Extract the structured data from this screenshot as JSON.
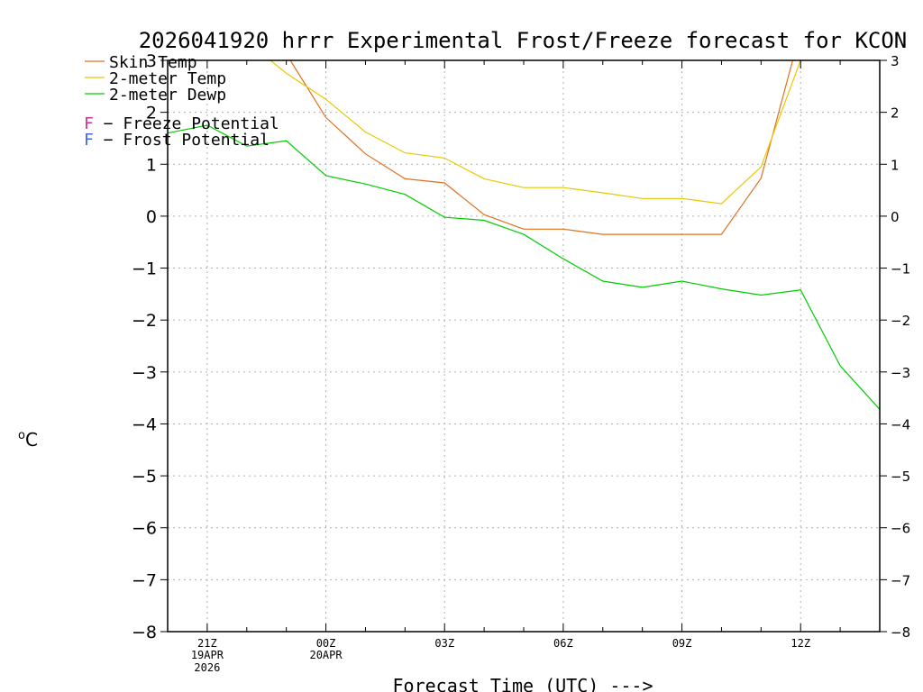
{
  "chart_data": {
    "type": "line",
    "title": "2026041920 hrrr Experimental Frost/Freeze forecast for KCON",
    "xlabel": "Forecast Time (UTC) --->",
    "ylabel_unit": "C",
    "ylabel_degree": "o",
    "ylim": [
      -8,
      3
    ],
    "y_ticks": [
      3,
      2,
      1,
      0,
      -1,
      -2,
      -3,
      -4,
      -5,
      -6,
      -7,
      -8
    ],
    "y_tick_labels": [
      "3",
      "2",
      "1",
      "0",
      "−1",
      "−2",
      "−3",
      "−4",
      "−5",
      "−6",
      "−7",
      "−8"
    ],
    "xlim": [
      20,
      38
    ],
    "x_ticks": [
      {
        "hour": 21,
        "label": "21Z",
        "sub": "19APR",
        "sub2": "2026"
      },
      {
        "hour": 24,
        "label": "00Z",
        "sub": "20APR",
        "sub2": ""
      },
      {
        "hour": 27,
        "label": "03Z",
        "sub": "",
        "sub2": ""
      },
      {
        "hour": 30,
        "label": "06Z",
        "sub": "",
        "sub2": ""
      },
      {
        "hour": 33,
        "label": "09Z",
        "sub": "",
        "sub2": ""
      },
      {
        "hour": 36,
        "label": "12Z",
        "sub": "",
        "sub2": ""
      }
    ],
    "series": [
      {
        "name": "Skin Temp",
        "color": "#e07020",
        "x": [
          23.1,
          24,
          25,
          26,
          27,
          28,
          29,
          30,
          31,
          32,
          33,
          34,
          35,
          35.8
        ],
        "values": [
          3.0,
          1.9,
          1.2,
          0.72,
          0.64,
          0.03,
          -0.25,
          -0.25,
          -0.35,
          -0.35,
          -0.35,
          -0.35,
          0.73,
          3.0
        ]
      },
      {
        "name": "2-meter Temp",
        "color": "#e8c800",
        "x": [
          22.6,
          23,
          24,
          25,
          26,
          27,
          28,
          29,
          30,
          31,
          32,
          33,
          34,
          35,
          36
        ],
        "values": [
          3.0,
          2.75,
          2.25,
          1.62,
          1.22,
          1.12,
          0.72,
          0.55,
          0.55,
          0.45,
          0.34,
          0.34,
          0.24,
          0.95,
          3.0
        ]
      },
      {
        "name": "2-meter Dewp",
        "color": "#00cc00",
        "x": [
          20,
          21,
          22,
          23,
          24,
          25,
          26,
          27,
          28,
          29,
          30,
          31,
          32,
          33,
          34,
          35,
          36,
          37,
          38
        ],
        "values": [
          1.6,
          1.75,
          1.35,
          1.45,
          0.78,
          0.62,
          0.42,
          -0.02,
          -0.08,
          -0.35,
          -0.82,
          -1.25,
          -1.37,
          -1.25,
          -1.4,
          -1.52,
          -1.42,
          -2.88,
          -3.72
        ]
      }
    ],
    "legend": [
      {
        "marker": "",
        "label": "Skin Temp",
        "color": "#e07020"
      },
      {
        "marker": "",
        "label": "2-meter Temp",
        "color": "#e8c800"
      },
      {
        "marker": "",
        "label": "2-meter Dewp",
        "color": "#00cc00"
      },
      {
        "marker": "F",
        "label": " − Freeze Potential",
        "color": "#cc3399"
      },
      {
        "marker": "F",
        "label": " − Frost Potential",
        "color": "#4466ee"
      }
    ],
    "grid": true
  }
}
